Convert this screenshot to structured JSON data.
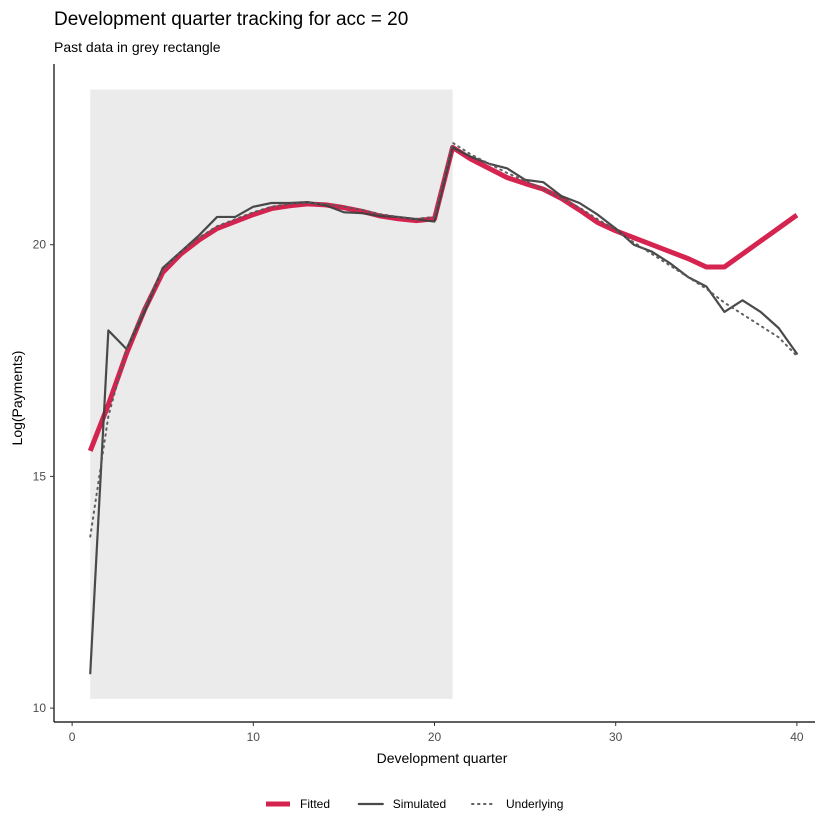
{
  "chart_data": {
    "type": "line",
    "title": "Development quarter tracking for acc = 20",
    "subtitle": "Past data in grey rectangle",
    "xlabel": "Development quarter",
    "ylabel": "Log(Payments)",
    "xlim": [
      -1,
      41
    ],
    "ylim": [
      9.7,
      23.9
    ],
    "x_ticks": [
      0,
      10,
      20,
      30,
      40
    ],
    "y_ticks": [
      10,
      15,
      20
    ],
    "grid": false,
    "legend_position": "bottom",
    "past_region": {
      "x": [
        1,
        21
      ],
      "y": [
        10.2,
        23.35
      ],
      "color": "#ebebeb"
    },
    "x": [
      1,
      2,
      3,
      4,
      5,
      6,
      7,
      8,
      9,
      10,
      11,
      12,
      13,
      14,
      15,
      16,
      17,
      18,
      19,
      20,
      21,
      22,
      23,
      24,
      25,
      26,
      27,
      28,
      29,
      30,
      31,
      32,
      33,
      34,
      35,
      36,
      37,
      38,
      39,
      40
    ],
    "series": [
      {
        "name": "Fitted",
        "style": "thick",
        "color": "#d11141",
        "values": [
          15.55,
          16.55,
          17.65,
          18.6,
          19.4,
          19.8,
          20.1,
          20.35,
          20.5,
          20.65,
          20.78,
          20.84,
          20.88,
          20.86,
          20.8,
          20.72,
          20.62,
          20.56,
          20.52,
          20.56,
          22.1,
          21.85,
          21.65,
          21.45,
          21.32,
          21.2,
          21.0,
          20.75,
          20.48,
          20.3,
          20.15,
          20.0,
          19.85,
          19.7,
          19.52,
          19.52,
          19.8,
          20.08,
          20.36,
          20.64
        ]
      },
      {
        "name": "Simulated",
        "style": "solid",
        "color": "#404040",
        "values": [
          10.75,
          18.15,
          17.75,
          18.55,
          19.5,
          19.85,
          20.2,
          20.6,
          20.6,
          20.82,
          20.9,
          20.9,
          20.92,
          20.85,
          20.7,
          20.68,
          20.62,
          20.6,
          20.55,
          20.5,
          22.1,
          21.9,
          21.75,
          21.65,
          21.4,
          21.35,
          21.05,
          20.9,
          20.65,
          20.35,
          20.0,
          19.85,
          19.6,
          19.3,
          19.1,
          18.55,
          18.8,
          18.55,
          18.2,
          17.65
        ]
      },
      {
        "name": "Underlying",
        "style": "dotted",
        "color": "#595959",
        "values": [
          13.7,
          16.3,
          17.75,
          18.65,
          19.45,
          19.85,
          20.15,
          20.4,
          20.55,
          20.7,
          20.82,
          20.88,
          20.9,
          20.88,
          20.82,
          20.75,
          20.66,
          20.6,
          20.56,
          20.6,
          22.2,
          21.95,
          21.75,
          21.55,
          21.38,
          21.2,
          21.0,
          20.8,
          20.55,
          20.32,
          20.05,
          19.8,
          19.55,
          19.3,
          19.05,
          18.75,
          18.5,
          18.25,
          18.0,
          17.6
        ]
      }
    ]
  }
}
